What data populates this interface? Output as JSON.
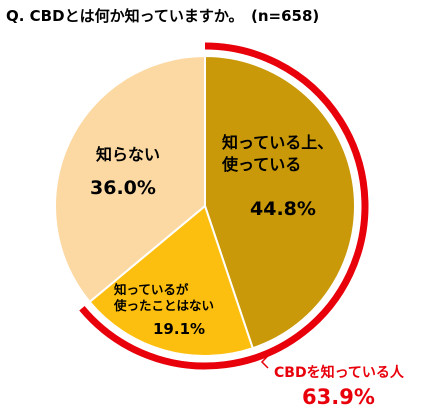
{
  "title": "Q. CBDとは何か知っていますか。　(n=658)",
  "chart_data": {
    "type": "pie",
    "title": "Q. CBDとは何か知っていますか。　(n=658)",
    "start_angle_deg": 0,
    "direction": "clockwise",
    "slices": [
      {
        "key": "used",
        "label_lines": [
          "知っている上、",
          "使っている"
        ],
        "value": 44.8,
        "value_label": "44.8%",
        "color": "#C9990A"
      },
      {
        "key": "known-not-used",
        "label_lines": [
          "知っているが",
          "使ったことはない"
        ],
        "value": 19.1,
        "value_label": "19.1%",
        "color": "#FDBF0F"
      },
      {
        "key": "unknown",
        "label_lines": [
          "知らない"
        ],
        "value": 36.0,
        "value_label": "36.0%",
        "color": "#FCD9A3"
      }
    ],
    "callout": {
      "label": "CBDを知っている人",
      "value": 63.9,
      "value_label": "63.9%",
      "color": "#E8000B",
      "covers": [
        "used",
        "known-not-used"
      ]
    }
  }
}
